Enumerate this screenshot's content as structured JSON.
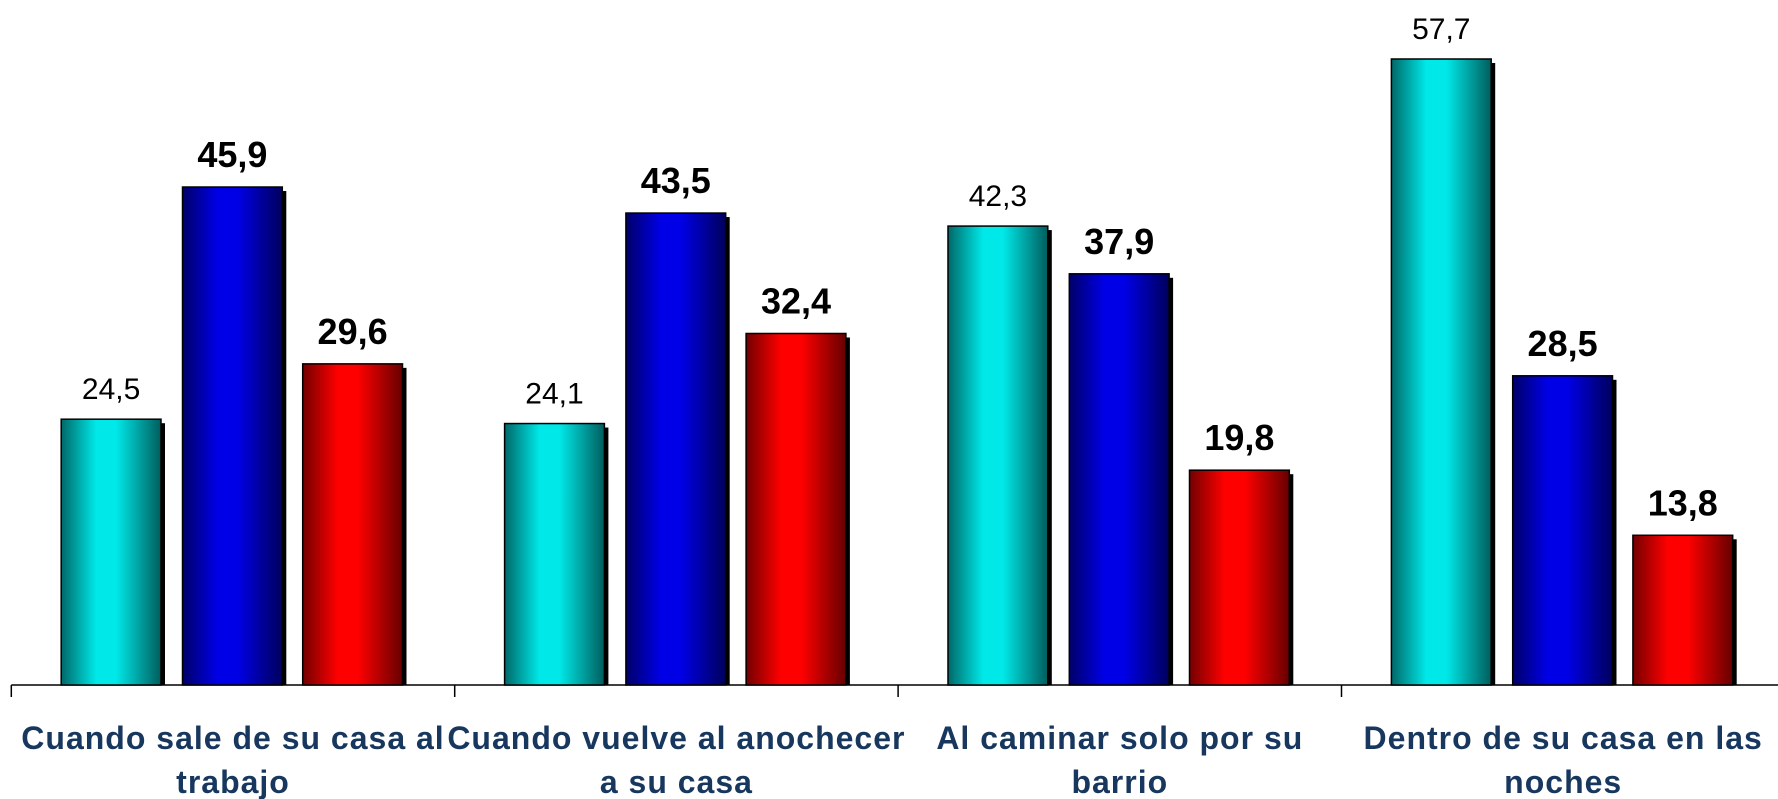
{
  "chart_data": {
    "type": "bar",
    "categories": [
      "Cuando sale de su casa al trabajo",
      "Cuando vuelve al anochecer a su casa",
      "Al caminar solo por su barrio",
      "Dentro de su casa en las noches"
    ],
    "series": [
      {
        "color": "#00e8e8",
        "values": [
          24.5,
          24.1,
          42.3,
          57.7
        ],
        "value_labels": [
          "24,5",
          "24,1",
          "42,3",
          "57,7"
        ],
        "bold": false
      },
      {
        "color": "#0000e6",
        "values": [
          45.9,
          43.5,
          37.9,
          28.5
        ],
        "value_labels": [
          "45,9",
          "43,5",
          "37,9",
          "28,5"
        ],
        "bold": true
      },
      {
        "color": "#ff0000",
        "values": [
          29.6,
          32.4,
          19.8,
          13.8
        ],
        "value_labels": [
          "29,6",
          "32,4",
          "19,8",
          "13,8"
        ],
        "bold": true
      }
    ],
    "ylim": [
      0,
      63
    ]
  }
}
